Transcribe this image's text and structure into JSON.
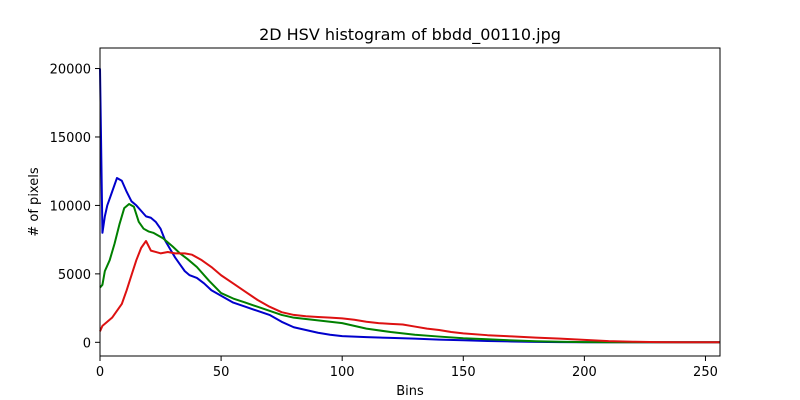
{
  "chart_data": {
    "type": "line",
    "title": "2D HSV histogram of bbdd_00110.jpg",
    "xlabel": "Bins",
    "ylabel": "# of pixels",
    "xlim": [
      0,
      256
    ],
    "ylim": [
      -1000,
      21500
    ],
    "xticks": [
      0,
      50,
      100,
      150,
      200,
      250
    ],
    "yticks": [
      0,
      5000,
      10000,
      15000,
      20000
    ],
    "grid": false,
    "legend": "none",
    "series": [
      {
        "color": "#0000cc",
        "points": [
          [
            0,
            20000
          ],
          [
            1,
            8000
          ],
          [
            2,
            9200
          ],
          [
            3,
            10000
          ],
          [
            5,
            11000
          ],
          [
            7,
            12000
          ],
          [
            9,
            11800
          ],
          [
            11,
            11000
          ],
          [
            13,
            10300
          ],
          [
            15,
            10000
          ],
          [
            17,
            9600
          ],
          [
            19,
            9200
          ],
          [
            21,
            9100
          ],
          [
            23,
            8800
          ],
          [
            25,
            8300
          ],
          [
            27,
            7400
          ],
          [
            29,
            6800
          ],
          [
            31,
            6200
          ],
          [
            33,
            5700
          ],
          [
            35,
            5200
          ],
          [
            37,
            4900
          ],
          [
            40,
            4700
          ],
          [
            43,
            4300
          ],
          [
            46,
            3800
          ],
          [
            50,
            3400
          ],
          [
            55,
            2900
          ],
          [
            60,
            2600
          ],
          [
            65,
            2300
          ],
          [
            70,
            2000
          ],
          [
            75,
            1500
          ],
          [
            80,
            1100
          ],
          [
            85,
            900
          ],
          [
            90,
            700
          ],
          [
            95,
            550
          ],
          [
            100,
            450
          ],
          [
            110,
            380
          ],
          [
            120,
            320
          ],
          [
            130,
            270
          ],
          [
            140,
            200
          ],
          [
            150,
            150
          ],
          [
            160,
            100
          ],
          [
            170,
            60
          ],
          [
            180,
            30
          ],
          [
            190,
            10
          ],
          [
            200,
            5
          ],
          [
            210,
            0
          ],
          [
            220,
            0
          ],
          [
            230,
            0
          ],
          [
            240,
            0
          ],
          [
            256,
            0
          ]
        ]
      },
      {
        "color": "#008000",
        "points": [
          [
            0,
            4000
          ],
          [
            1,
            4200
          ],
          [
            2,
            5200
          ],
          [
            4,
            6000
          ],
          [
            6,
            7200
          ],
          [
            8,
            8600
          ],
          [
            10,
            9800
          ],
          [
            12,
            10100
          ],
          [
            14,
            9900
          ],
          [
            16,
            8800
          ],
          [
            18,
            8300
          ],
          [
            20,
            8100
          ],
          [
            22,
            8000
          ],
          [
            24,
            7800
          ],
          [
            26,
            7600
          ],
          [
            28,
            7300
          ],
          [
            30,
            7000
          ],
          [
            33,
            6500
          ],
          [
            36,
            6100
          ],
          [
            40,
            5500
          ],
          [
            45,
            4500
          ],
          [
            50,
            3600
          ],
          [
            55,
            3200
          ],
          [
            60,
            2900
          ],
          [
            65,
            2600
          ],
          [
            70,
            2300
          ],
          [
            75,
            2000
          ],
          [
            80,
            1800
          ],
          [
            90,
            1600
          ],
          [
            100,
            1400
          ],
          [
            110,
            1000
          ],
          [
            120,
            750
          ],
          [
            130,
            550
          ],
          [
            140,
            420
          ],
          [
            150,
            300
          ],
          [
            160,
            220
          ],
          [
            170,
            140
          ],
          [
            180,
            80
          ],
          [
            190,
            40
          ],
          [
            200,
            15
          ],
          [
            210,
            5
          ],
          [
            220,
            0
          ],
          [
            240,
            0
          ],
          [
            256,
            0
          ]
        ]
      },
      {
        "color": "#dd1111",
        "points": [
          [
            0,
            800
          ],
          [
            1,
            1200
          ],
          [
            3,
            1500
          ],
          [
            5,
            1800
          ],
          [
            7,
            2300
          ],
          [
            9,
            2800
          ],
          [
            11,
            3800
          ],
          [
            13,
            4900
          ],
          [
            15,
            6000
          ],
          [
            17,
            6900
          ],
          [
            19,
            7400
          ],
          [
            21,
            6700
          ],
          [
            23,
            6600
          ],
          [
            25,
            6500
          ],
          [
            28,
            6600
          ],
          [
            31,
            6500
          ],
          [
            35,
            6500
          ],
          [
            38,
            6400
          ],
          [
            42,
            6000
          ],
          [
            46,
            5500
          ],
          [
            50,
            4900
          ],
          [
            55,
            4300
          ],
          [
            60,
            3700
          ],
          [
            65,
            3100
          ],
          [
            70,
            2600
          ],
          [
            75,
            2200
          ],
          [
            80,
            2000
          ],
          [
            85,
            1900
          ],
          [
            90,
            1850
          ],
          [
            95,
            1800
          ],
          [
            100,
            1750
          ],
          [
            105,
            1650
          ],
          [
            110,
            1500
          ],
          [
            115,
            1400
          ],
          [
            120,
            1350
          ],
          [
            125,
            1300
          ],
          [
            130,
            1150
          ],
          [
            135,
            1000
          ],
          [
            140,
            900
          ],
          [
            145,
            750
          ],
          [
            150,
            650
          ],
          [
            160,
            520
          ],
          [
            170,
            430
          ],
          [
            180,
            340
          ],
          [
            190,
            270
          ],
          [
            200,
            180
          ],
          [
            210,
            90
          ],
          [
            220,
            40
          ],
          [
            230,
            15
          ],
          [
            240,
            5
          ],
          [
            256,
            0
          ]
        ]
      }
    ]
  }
}
